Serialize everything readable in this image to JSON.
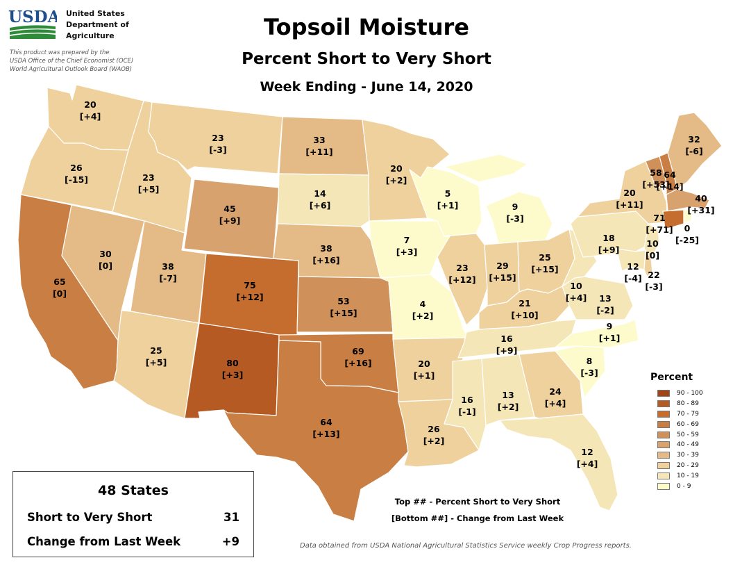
{
  "header": {
    "title": "Topsoil Moisture",
    "subtitle": "Percent Short to Very Short",
    "week": "Week Ending - June 14, 2020"
  },
  "agency": {
    "logo_text": "USDA",
    "line1": "United States",
    "line2": "Department of",
    "line3": "Agriculture",
    "prepared1": "This product was prepared by the",
    "prepared2": "USDA Office of the Chief Economist (OCE)",
    "prepared3": "World Agricultural Outlook Board (WAOB)"
  },
  "legend": {
    "title": "Percent",
    "classes": [
      {
        "label": "90 - 100",
        "color": "#a0471a"
      },
      {
        "label": "80 - 89",
        "color": "#b65a24"
      },
      {
        "label": "70 - 79",
        "color": "#c46d2f"
      },
      {
        "label": "60 - 69",
        "color": "#c97f43"
      },
      {
        "label": "50 - 59",
        "color": "#cf9059"
      },
      {
        "label": "40 - 49",
        "color": "#d8a26e"
      },
      {
        "label": "30 - 39",
        "color": "#e4bb86"
      },
      {
        "label": "20 - 29",
        "color": "#efd19d"
      },
      {
        "label": "10 - 19",
        "color": "#f5e6b7"
      },
      {
        "label": "0 - 9",
        "color": "#fdfbcb"
      }
    ]
  },
  "summary": {
    "title": "48 States",
    "row1_label": "Short to Very Short",
    "row1_value": "31",
    "row2_label": "Change from Last Week",
    "row2_value": "+9"
  },
  "note": {
    "line1": "Top ## - Percent Short to Very Short",
    "line2": "[Bottom ##] - Change from Last Week"
  },
  "source": "Data obtained from USDA National Agricultural Statistics Service weekly Crop Progress reports.",
  "chart_data": {
    "type": "choropleth",
    "title": "Topsoil Moisture",
    "subtitle": "Percent Short to Very Short",
    "states": [
      {
        "state": "WA",
        "value": 20,
        "change": "[+4]"
      },
      {
        "state": "OR",
        "value": 26,
        "change": "[-15]"
      },
      {
        "state": "CA",
        "value": 65,
        "change": "[0]"
      },
      {
        "state": "ID",
        "value": 23,
        "change": "[+5]"
      },
      {
        "state": "NV",
        "value": 30,
        "change": "[0]"
      },
      {
        "state": "MT",
        "value": 23,
        "change": "[-3]"
      },
      {
        "state": "WY",
        "value": 45,
        "change": "[+9]"
      },
      {
        "state": "UT",
        "value": 38,
        "change": "[-7]"
      },
      {
        "state": "AZ",
        "value": 25,
        "change": "[+5]"
      },
      {
        "state": "CO",
        "value": 75,
        "change": "[+12]"
      },
      {
        "state": "NM",
        "value": 80,
        "change": "[+3]"
      },
      {
        "state": "ND",
        "value": 33,
        "change": "[+11]"
      },
      {
        "state": "SD",
        "value": 14,
        "change": "[+6]"
      },
      {
        "state": "NE",
        "value": 38,
        "change": "[+16]"
      },
      {
        "state": "KS",
        "value": 53,
        "change": "[+15]"
      },
      {
        "state": "OK",
        "value": 69,
        "change": "[+16]"
      },
      {
        "state": "TX",
        "value": 64,
        "change": "[+13]"
      },
      {
        "state": "MN",
        "value": 20,
        "change": "[+2]"
      },
      {
        "state": "IA",
        "value": 7,
        "change": "[+3]"
      },
      {
        "state": "MO",
        "value": 4,
        "change": "[+2]"
      },
      {
        "state": "AR",
        "value": 20,
        "change": "[+1]"
      },
      {
        "state": "LA",
        "value": 26,
        "change": "[+2]"
      },
      {
        "state": "WI",
        "value": 5,
        "change": "[+1]"
      },
      {
        "state": "IL",
        "value": 23,
        "change": "[+12]"
      },
      {
        "state": "MI",
        "value": 9,
        "change": "[-3]"
      },
      {
        "state": "IN",
        "value": 29,
        "change": "[+15]"
      },
      {
        "state": "OH",
        "value": 25,
        "change": "[+15]"
      },
      {
        "state": "KY",
        "value": 21,
        "change": "[+10]"
      },
      {
        "state": "TN",
        "value": 16,
        "change": "[+9]"
      },
      {
        "state": "MS",
        "value": 16,
        "change": "[-1]"
      },
      {
        "state": "AL",
        "value": 13,
        "change": "[+2]"
      },
      {
        "state": "GA",
        "value": 24,
        "change": "[+4]"
      },
      {
        "state": "FL",
        "value": 12,
        "change": "[+4]"
      },
      {
        "state": "SC",
        "value": 8,
        "change": "[-3]"
      },
      {
        "state": "NC",
        "value": 9,
        "change": "[+1]"
      },
      {
        "state": "VA",
        "value": 13,
        "change": "[-2]"
      },
      {
        "state": "WV",
        "value": 10,
        "change": "[+4]"
      },
      {
        "state": "PA",
        "value": 18,
        "change": "[+9]"
      },
      {
        "state": "NY",
        "value": 20,
        "change": "[+11]"
      },
      {
        "state": "VT",
        "value": 58,
        "change": "[+53]"
      },
      {
        "state": "NH",
        "value": 64,
        "change": "[+14]"
      },
      {
        "state": "ME",
        "value": 32,
        "change": "[-6]"
      },
      {
        "state": "MA",
        "value": 40,
        "change": "[+31]"
      },
      {
        "state": "CT",
        "value": 71,
        "change": "[+71]"
      },
      {
        "state": "RI",
        "value": 0,
        "change": "[-25]"
      },
      {
        "state": "NJ",
        "value": 10,
        "change": "[0]"
      },
      {
        "state": "MD",
        "value": 12,
        "change": "[-4]"
      },
      {
        "state": "DE",
        "value": 22,
        "change": "[-3]"
      }
    ]
  }
}
